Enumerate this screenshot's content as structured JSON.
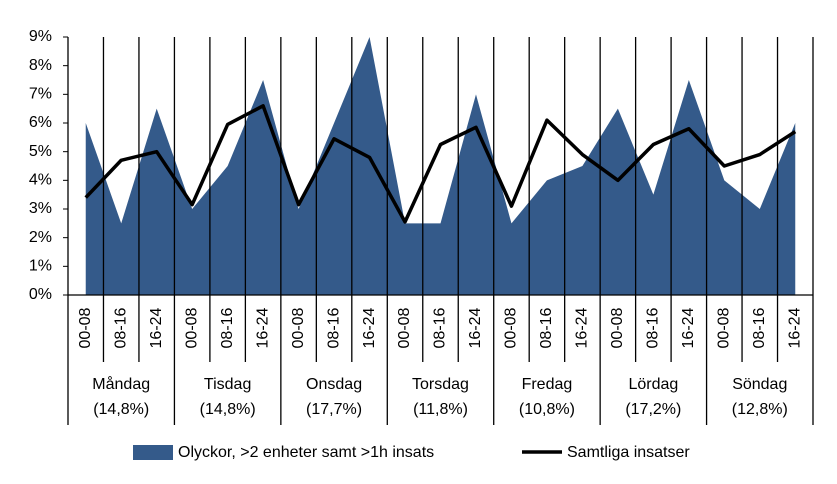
{
  "chart_data": {
    "type": "area-line",
    "categories": [
      "00-08",
      "08-16",
      "16-24",
      "00-08",
      "08-16",
      "16-24",
      "00-08",
      "08-16",
      "16-24",
      "00-08",
      "08-16",
      "16-24",
      "00-08",
      "08-16",
      "16-24",
      "00-08",
      "08-16",
      "16-24",
      "00-08",
      "08-16",
      "16-24"
    ],
    "groups": [
      {
        "label": "Måndag",
        "share": "(14,8%)"
      },
      {
        "label": "Tisdag",
        "share": "(14,8%)"
      },
      {
        "label": "Onsdag",
        "share": "(17,7%)"
      },
      {
        "label": "Torsdag",
        "share": "(11,8%)"
      },
      {
        "label": "Fredag",
        "share": "(10,8%)"
      },
      {
        "label": "Lördag",
        "share": "(17,2%)"
      },
      {
        "label": "Söndag",
        "share": "(12,8%)"
      }
    ],
    "series": [
      {
        "name": "Olyckor, >2 enheter samt >1h insats",
        "kind": "area",
        "color": "#345a8a",
        "values": [
          6.0,
          2.5,
          6.5,
          3.0,
          4.5,
          7.5,
          3.0,
          6.0,
          9.0,
          2.5,
          2.5,
          7.0,
          2.5,
          4.0,
          4.5,
          6.5,
          3.5,
          7.5,
          4.0,
          3.0,
          6.0
        ]
      },
      {
        "name": "Samtliga insatser",
        "kind": "line",
        "color": "#000000",
        "values": [
          3.4,
          4.7,
          5.0,
          3.15,
          5.95,
          6.6,
          3.15,
          5.45,
          4.8,
          2.55,
          5.25,
          5.85,
          3.1,
          6.1,
          4.9,
          4.0,
          5.25,
          5.8,
          4.5,
          4.9,
          5.7
        ]
      }
    ],
    "ylim": [
      0,
      9
    ],
    "yticks": [
      {
        "value": 0,
        "label": "0%"
      },
      {
        "value": 1,
        "label": "1%"
      },
      {
        "value": 2,
        "label": "2%"
      },
      {
        "value": 3,
        "label": "3%"
      },
      {
        "value": 4,
        "label": "4%"
      },
      {
        "value": 5,
        "label": "5%"
      },
      {
        "value": 6,
        "label": "6%"
      },
      {
        "value": 7,
        "label": "7%"
      },
      {
        "value": 8,
        "label": "8%"
      },
      {
        "value": 9,
        "label": "9%"
      }
    ],
    "legend": "bottom"
  }
}
